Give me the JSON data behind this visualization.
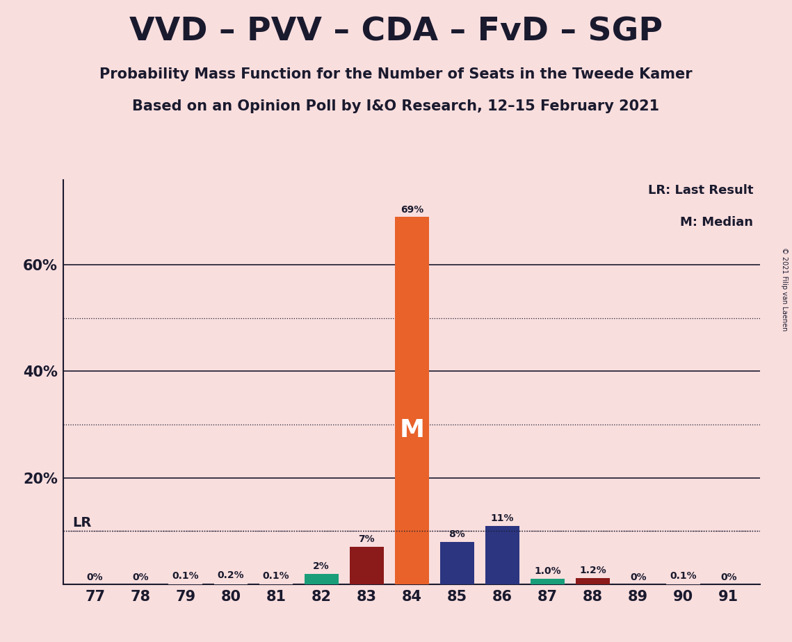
{
  "title": "VVD – PVV – CDA – FvD – SGP",
  "subtitle1": "Probability Mass Function for the Number of Seats in the Tweede Kamer",
  "subtitle2": "Based on an Opinion Poll by I&O Research, 12–15 February 2021",
  "copyright": "© 2021 Filip van Laenen",
  "seats": [
    77,
    78,
    79,
    80,
    81,
    82,
    83,
    84,
    85,
    86,
    87,
    88,
    89,
    90,
    91
  ],
  "values": [
    0.0,
    0.0,
    0.1,
    0.2,
    0.1,
    2.0,
    7.0,
    69.0,
    8.0,
    11.0,
    1.0,
    1.2,
    0.0,
    0.1,
    0.0
  ],
  "labels": [
    "0%",
    "0%",
    "0.1%",
    "0.2%",
    "0.1%",
    "2%",
    "7%",
    "69%",
    "8%",
    "11%",
    "1.0%",
    "1.2%",
    "0%",
    "0.1%",
    "0%"
  ],
  "bar_colors": [
    "#f9dede",
    "#f9dede",
    "#f9dede",
    "#f9dede",
    "#f9dede",
    "#1a9e7a",
    "#8b1a1a",
    "#e8622a",
    "#2b3580",
    "#2b3580",
    "#1a9e7a",
    "#8b1a1a",
    "#f9dede",
    "#f9dede",
    "#f9dede"
  ],
  "median_seat": 84,
  "lr_value": 10.0,
  "background_color": "#f9dede",
  "solid_gridlines": [
    0,
    20,
    40,
    60
  ],
  "dotted_gridlines": [
    10,
    30,
    50
  ],
  "ytick_labels": [
    "",
    "20%",
    "40%",
    "60%"
  ],
  "legend_text1": "LR: Last Result",
  "legend_text2": "M: Median",
  "lr_label": "LR",
  "median_label": "M",
  "ymax": 76,
  "bar_width": 0.75
}
